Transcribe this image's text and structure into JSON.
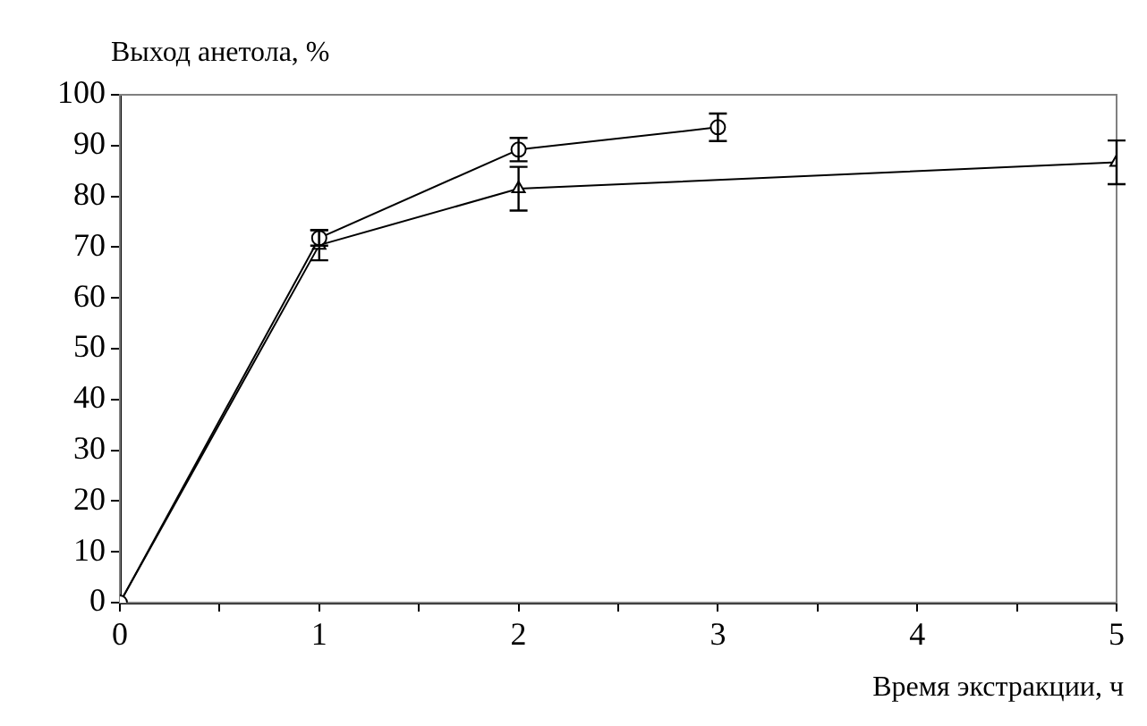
{
  "chart_data": {
    "type": "line",
    "ylabel": "Выход анетола, %",
    "xlabel": "Время экстракции, ч",
    "xlim": [
      0,
      5
    ],
    "xticks": [
      0,
      {
        "value": 0.5,
        "label": null
      },
      1,
      {
        "value": 1.5,
        "label": null
      },
      2,
      {
        "value": 2.5,
        "label": null
      },
      3,
      {
        "value": 3.5,
        "label": null
      },
      4,
      {
        "value": 4.5,
        "label": null
      },
      5
    ],
    "ylim": [
      0,
      100
    ],
    "yticks": [
      0,
      10,
      20,
      30,
      40,
      50,
      60,
      70,
      80,
      90,
      100
    ],
    "grid": false,
    "line_style": "solid",
    "series": [
      {
        "color": "#000000",
        "marker": "circle",
        "x": [
          0,
          1,
          2,
          3
        ],
        "values": [
          0,
          71.8,
          89.2,
          93.6
        ],
        "errors": [
          null,
          1.5,
          2.3,
          2.7
        ]
      },
      {
        "color": "#000000",
        "marker": "triangle",
        "x": [
          0,
          1,
          2,
          5
        ],
        "values": [
          0,
          70.4,
          81.5,
          86.7
        ],
        "errors": [
          null,
          3,
          4.3,
          4.3
        ]
      }
    ]
  }
}
